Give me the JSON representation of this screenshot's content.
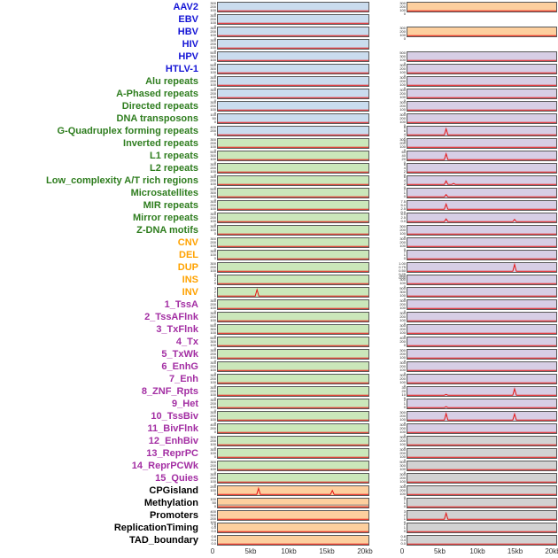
{
  "chart_data": {
    "type": "area",
    "description": "Dense multi-track genomic signal figure: 44 labeled tracks in two sample columns, red signal traces over pastel panels",
    "x_ticks": [
      "0",
      "5kb",
      "10kb",
      "15kb",
      "20kb"
    ],
    "x_tick_positions": [
      0,
      0.25,
      0.5,
      0.75,
      1
    ],
    "x_range_kb": [
      0,
      20
    ],
    "grid": false,
    "legend": "none",
    "default_ticks": [
      "300",
      "200",
      "100",
      "0"
    ],
    "palette": {
      "label_colors": {
        "virus": "#1515d6",
        "repeat": "#2e7d1e",
        "sv": "#ffa200",
        "chromatin": "#a32ea3",
        "other": "#000000"
      },
      "panel_colors": {
        "blue": "#cadcee",
        "green": "#cbe7ba",
        "purple": "#d7cee5",
        "orange": "#fdcf9e",
        "gray": "#d2d2d2"
      },
      "trace": "#e51212",
      "flat": "#8a8a8a"
    },
    "rows": [
      {
        "label": "AAV2",
        "group": "virus",
        "left": {
          "bg": "blue",
          "peaks": []
        },
        "right": {
          "bg": "orange",
          "peaks": []
        }
      },
      {
        "label": "EBV",
        "group": "virus",
        "left": {
          "bg": "blue",
          "peaks": []
        },
        "right": null
      },
      {
        "label": "HBV",
        "group": "virus",
        "left": {
          "bg": "blue",
          "peaks": []
        },
        "right": {
          "bg": "orange",
          "peaks": []
        }
      },
      {
        "label": "HIV",
        "group": "virus",
        "left": {
          "bg": "blue",
          "peaks": []
        },
        "right": null
      },
      {
        "label": "HPV",
        "group": "virus",
        "left": {
          "bg": "blue",
          "ticks": [
            "500",
            "300",
            "100",
            "0"
          ],
          "peaks": []
        },
        "right": {
          "bg": "purple",
          "ticks": [
            "500",
            "300",
            "100",
            "0"
          ],
          "peaks": []
        }
      },
      {
        "label": "HTLV-1",
        "group": "virus",
        "left": {
          "bg": "blue",
          "ticks": [
            "500",
            "300",
            "100",
            "0"
          ],
          "peaks": []
        },
        "right": {
          "bg": "purple",
          "peaks": []
        }
      },
      {
        "label": "Alu repeats",
        "group": "repeat",
        "left": {
          "bg": "blue",
          "peaks": []
        },
        "right": {
          "bg": "purple",
          "peaks": []
        }
      },
      {
        "label": "A-Phased repeats",
        "group": "repeat",
        "left": {
          "bg": "blue",
          "peaks": []
        },
        "right": {
          "bg": "purple",
          "peaks": []
        }
      },
      {
        "label": "Directed repeats",
        "group": "repeat",
        "left": {
          "bg": "blue",
          "peaks": []
        },
        "right": {
          "bg": "purple",
          "peaks": []
        }
      },
      {
        "label": "DNA transposons",
        "group": "repeat",
        "left": {
          "bg": "blue",
          "ticks": [
            "100",
            "50",
            "0"
          ],
          "peaks": []
        },
        "right": {
          "bg": "purple",
          "peaks": []
        }
      },
      {
        "label": "G-Quadruplex forming repeats",
        "group": "repeat",
        "left": {
          "bg": "blue",
          "ticks": [
            "400",
            "200",
            "0"
          ],
          "peaks": []
        },
        "right": {
          "bg": "purple",
          "ticks": [
            "8",
            "6",
            "4",
            "2",
            "0"
          ],
          "peaks": [
            [
              0.26,
              0.8
            ]
          ]
        }
      },
      {
        "label": "Inverted repeats",
        "group": "repeat",
        "left": {
          "bg": "green",
          "peaks": []
        },
        "right": {
          "bg": "purple",
          "peaks": []
        }
      },
      {
        "label": "L1 repeats",
        "group": "repeat",
        "left": {
          "bg": "green",
          "ticks": [
            "500",
            "300",
            "100",
            "0"
          ],
          "peaks": []
        },
        "right": {
          "bg": "purple",
          "ticks": [
            "60",
            "40",
            "20",
            "0"
          ],
          "peaks": [
            [
              0.26,
              0.78
            ]
          ]
        }
      },
      {
        "label": "L2 repeats",
        "group": "repeat",
        "left": {
          "bg": "green",
          "peaks": []
        },
        "right": {
          "bg": "purple",
          "ticks": [
            "6",
            "4",
            "2",
            "0"
          ],
          "peaks": []
        }
      },
      {
        "label": "Low_complexity A/T rich regions",
        "group": "repeat",
        "left": {
          "bg": "green",
          "peaks": []
        },
        "right": {
          "bg": "purple",
          "ticks": [
            "6",
            "4",
            "2",
            "0"
          ],
          "peaks": [
            [
              0.26,
              0.5
            ],
            [
              0.31,
              0.2
            ]
          ]
        }
      },
      {
        "label": "Microsatellites",
        "group": "repeat",
        "left": {
          "bg": "green",
          "ticks": [
            "500",
            "300",
            "100",
            "0"
          ],
          "peaks": []
        },
        "right": {
          "bg": "purple",
          "ticks": [
            "2",
            "1",
            "0"
          ],
          "peaks": [
            [
              0.26,
              0.35
            ]
          ]
        }
      },
      {
        "label": "MIR repeats",
        "group": "repeat",
        "left": {
          "bg": "green",
          "peaks": []
        },
        "right": {
          "bg": "purple",
          "ticks": [
            "7.5",
            "5.0",
            "2.5",
            "0.0"
          ],
          "peaks": [
            [
              0.26,
              0.7
            ]
          ]
        }
      },
      {
        "label": "Mirror repeats",
        "group": "repeat",
        "left": {
          "bg": "green",
          "peaks": []
        },
        "right": {
          "bg": "purple",
          "ticks": [
            "5.0",
            "2.5",
            "0.0"
          ],
          "peaks": [
            [
              0.26,
              0.4
            ],
            [
              0.72,
              0.35
            ]
          ]
        }
      },
      {
        "label": "Z-DNA motifs",
        "group": "repeat",
        "left": {
          "bg": "green",
          "ticks": [
            "300",
            "100",
            "0"
          ],
          "peaks": []
        },
        "right": {
          "bg": "purple",
          "peaks": []
        }
      },
      {
        "label": "CNV",
        "group": "sv",
        "left": {
          "bg": "green",
          "peaks": []
        },
        "right": {
          "bg": "purple",
          "peaks": []
        }
      },
      {
        "label": "DEL",
        "group": "sv",
        "left": {
          "bg": "green",
          "ticks": [
            "300",
            "100",
            "0"
          ],
          "peaks": []
        },
        "right": {
          "bg": "purple",
          "ticks": [
            "2",
            "1",
            "0"
          ],
          "peaks": []
        }
      },
      {
        "label": "DUP",
        "group": "sv",
        "left": {
          "bg": "green",
          "peaks": []
        },
        "right": {
          "bg": "purple",
          "ticks": [
            "1.00",
            "0.75",
            "0.50",
            "0.25",
            "0.00"
          ],
          "peaks": [
            [
              0.72,
              0.9
            ]
          ]
        }
      },
      {
        "label": "INS",
        "group": "sv",
        "left": {
          "bg": "green",
          "ticks": [
            "4",
            "2",
            "0"
          ],
          "peaks": []
        },
        "right": {
          "bg": "purple",
          "ticks": [
            "500",
            "300",
            "100",
            "0"
          ],
          "peaks": []
        }
      },
      {
        "label": "INV",
        "group": "sv",
        "left": {
          "bg": "green",
          "ticks": [
            "3",
            "2",
            "1",
            "0"
          ],
          "peaks": [
            [
              0.26,
              0.85
            ]
          ]
        },
        "right": {
          "bg": "purple",
          "ticks": [
            "500",
            "300",
            "100",
            "0"
          ],
          "peaks": []
        }
      },
      {
        "label": "1_TssA",
        "group": "chromatin",
        "left": {
          "bg": "green",
          "peaks": []
        },
        "right": {
          "bg": "purple",
          "peaks": []
        }
      },
      {
        "label": "2_TssAFlnk",
        "group": "chromatin",
        "left": {
          "bg": "green",
          "peaks": []
        },
        "right": {
          "bg": "purple",
          "peaks": []
        }
      },
      {
        "label": "3_TxFlnk",
        "group": "chromatin",
        "left": {
          "bg": "green",
          "ticks": [
            "500",
            "300",
            "100",
            "0"
          ],
          "peaks": []
        },
        "right": {
          "bg": "purple",
          "peaks": []
        }
      },
      {
        "label": "4_Tx",
        "group": "chromatin",
        "left": {
          "bg": "green",
          "ticks": [
            "500",
            "300",
            "100",
            "0"
          ],
          "peaks": []
        },
        "right": {
          "bg": "purple",
          "ticks": [
            "400",
            "200",
            "0"
          ],
          "peaks": []
        }
      },
      {
        "label": "5_TxWk",
        "group": "chromatin",
        "left": {
          "bg": "green",
          "peaks": []
        },
        "right": {
          "bg": "purple",
          "peaks": []
        }
      },
      {
        "label": "6_EnhG",
        "group": "chromatin",
        "left": {
          "bg": "green",
          "peaks": []
        },
        "right": {
          "bg": "purple",
          "peaks": []
        }
      },
      {
        "label": "7_Enh",
        "group": "chromatin",
        "left": {
          "bg": "green",
          "peaks": []
        },
        "right": {
          "bg": "purple",
          "peaks": []
        }
      },
      {
        "label": "8_ZNF_Rpts",
        "group": "chromatin",
        "left": {
          "bg": "green",
          "peaks": []
        },
        "right": {
          "bg": "purple",
          "ticks": [
            "30",
            "20",
            "10",
            "0"
          ],
          "peaks": [
            [
              0.26,
              0.18
            ],
            [
              0.72,
              0.85
            ]
          ]
        }
      },
      {
        "label": "9_Het",
        "group": "chromatin",
        "left": {
          "bg": "green",
          "peaks": []
        },
        "right": {
          "bg": "purple",
          "ticks": [
            "2",
            "1",
            "0"
          ],
          "peaks": [
            [
              0.26,
              0.2
            ]
          ]
        }
      },
      {
        "label": "10_TssBiv",
        "group": "chromatin",
        "left": {
          "bg": "green",
          "peaks": []
        },
        "right": {
          "bg": "purple",
          "ticks": [
            "300",
            "200",
            "100",
            "0"
          ],
          "peaks": [
            [
              0.26,
              0.85
            ],
            [
              0.72,
              0.8
            ]
          ]
        }
      },
      {
        "label": "11_BivFlnk",
        "group": "chromatin",
        "left": {
          "bg": "green",
          "ticks": [
            "400",
            "200",
            "0"
          ],
          "peaks": []
        },
        "right": {
          "bg": "purple",
          "peaks": []
        }
      },
      {
        "label": "12_EnhBiv",
        "group": "chromatin",
        "left": {
          "bg": "green",
          "peaks": []
        },
        "right": {
          "bg": "gray",
          "peaks": []
        }
      },
      {
        "label": "13_ReprPC",
        "group": "chromatin",
        "left": {
          "bg": "green",
          "ticks": [
            "300",
            "100",
            "0"
          ],
          "peaks": []
        },
        "right": {
          "bg": "gray",
          "peaks": []
        }
      },
      {
        "label": "14_ReprPCWk",
        "group": "chromatin",
        "left": {
          "bg": "green",
          "peaks": []
        },
        "right": {
          "bg": "gray",
          "ticks": [
            "500",
            "300",
            "100",
            "0"
          ],
          "peaks": []
        }
      },
      {
        "label": "15_Quies",
        "group": "chromatin",
        "left": {
          "bg": "green",
          "peaks": []
        },
        "right": {
          "bg": "gray",
          "peaks": []
        }
      },
      {
        "label": "CPGisland",
        "group": "other",
        "left": {
          "bg": "orange",
          "ticks": [
            "200",
            "100",
            "0"
          ],
          "peaks": [
            [
              0.27,
              0.8
            ],
            [
              0.76,
              0.55
            ]
          ]
        },
        "right": {
          "bg": "gray",
          "peaks": []
        }
      },
      {
        "label": "Methylation",
        "group": "other",
        "left": {
          "bg": "orange",
          "ticks": [
            "100",
            "50",
            "0"
          ],
          "flat": 0.3,
          "peaks": []
        },
        "right": {
          "bg": "gray",
          "ticks": [
            "2",
            "1",
            "0"
          ],
          "peaks": []
        }
      },
      {
        "label": "Promoters",
        "group": "other",
        "left": {
          "bg": "orange",
          "ticks": [
            "400",
            "300",
            "200",
            "100",
            "0"
          ],
          "peaks": []
        },
        "right": {
          "bg": "gray",
          "ticks": [
            "3",
            "2",
            "1",
            "0"
          ],
          "peaks": [
            [
              0.26,
              0.8
            ]
          ]
        }
      },
      {
        "label": "ReplicationTiming",
        "group": "other",
        "left": {
          "bg": "orange",
          "ticks": [
            "1.0",
            "0.5",
            "0.0"
          ],
          "peaks": []
        },
        "right": {
          "bg": "gray",
          "ticks": [
            "2",
            "1",
            "0"
          ],
          "peaks": []
        }
      },
      {
        "label": "TAD_boundary",
        "group": "other",
        "left": {
          "bg": "orange",
          "ticks": [
            "0.8",
            "0.4",
            "0.0"
          ],
          "peaks": []
        },
        "right": {
          "bg": "gray",
          "ticks": [
            "0.8",
            "0.4",
            "0.0"
          ],
          "peaks": []
        }
      }
    ]
  }
}
